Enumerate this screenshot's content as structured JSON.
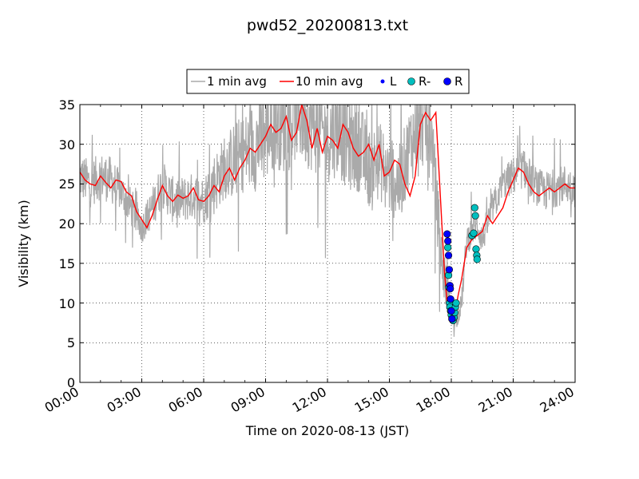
{
  "chart_data": {
    "type": "line",
    "title": "pwd52_20200813.txt",
    "xlabel": "Time on 2020-08-13 (JST)",
    "ylabel": "Visibility (km)",
    "xlim": [
      "00:00",
      "24:00"
    ],
    "ylim": [
      0,
      35
    ],
    "grid": true,
    "legend_position": "top-center",
    "x_tick_labels": [
      "00:00",
      "03:00",
      "06:00",
      "09:00",
      "12:00",
      "15:00",
      "18:00",
      "21:00",
      "24:00"
    ],
    "y_tick_labels": [
      "0",
      "5",
      "10",
      "15",
      "20",
      "25",
      "30",
      "35"
    ],
    "legend": [
      "1 min avg",
      "10 min avg",
      "L",
      "R-",
      "R"
    ],
    "colors": {
      "one_min": "#aaaaaa",
      "ten_min": "#ff0000",
      "L": "#0000ff",
      "R_minus": "#00bfbf",
      "R": "#0000ff"
    },
    "series": [
      {
        "name": "1 min avg",
        "style": "noisy-line",
        "x": [
          "00:00",
          "00:30",
          "01:00",
          "01:30",
          "02:00",
          "02:30",
          "03:00",
          "03:30",
          "04:00",
          "04:30",
          "05:00",
          "05:30",
          "06:00",
          "06:30",
          "07:00",
          "07:30",
          "08:00",
          "08:30",
          "09:00",
          "09:30",
          "10:00",
          "10:30",
          "11:00",
          "11:30",
          "12:00",
          "12:30",
          "13:00",
          "13:30",
          "14:00",
          "14:30",
          "15:00",
          "15:30",
          "16:00",
          "16:30",
          "17:00",
          "17:30",
          "17:45",
          "18:00",
          "18:15",
          "18:30",
          "18:45",
          "19:00",
          "19:15",
          "19:30",
          "20:00",
          "20:30",
          "21:00",
          "21:30",
          "22:00",
          "22:30",
          "23:00",
          "23:30",
          "24:00"
        ],
        "values": [
          26,
          25,
          26,
          25.5,
          24,
          22,
          19.5,
          22,
          25,
          23,
          23,
          23.5,
          23,
          25,
          27,
          28,
          29,
          30,
          31,
          33,
          32,
          34,
          33,
          32,
          31,
          32,
          30,
          30,
          27,
          28,
          26,
          25,
          30,
          33,
          32,
          16,
          12,
          8.5,
          7.8,
          10,
          18,
          19,
          20,
          18,
          22,
          25,
          26,
          27,
          25,
          24,
          24.5,
          25,
          24.5
        ],
        "noise": [
          3,
          3,
          3,
          3,
          2.5,
          2.5,
          2,
          2.5,
          3,
          3,
          3,
          3,
          3,
          4,
          4,
          5,
          5,
          6,
          6,
          6,
          6,
          6,
          6,
          6,
          6,
          6,
          6,
          6,
          5,
          5,
          5,
          5,
          5,
          6,
          5,
          4,
          3,
          1.5,
          1,
          1.5,
          2,
          2,
          2,
          2,
          2,
          2,
          2.5,
          2.5,
          2.5,
          2.5,
          2.5,
          2.5,
          2.5
        ]
      },
      {
        "name": "10 min avg",
        "style": "line",
        "x": [
          "00:00",
          "00:15",
          "00:30",
          "00:45",
          "01:00",
          "01:15",
          "01:30",
          "01:45",
          "02:00",
          "02:15",
          "02:30",
          "02:45",
          "03:00",
          "03:15",
          "03:30",
          "03:45",
          "04:00",
          "04:15",
          "04:30",
          "04:45",
          "05:00",
          "05:15",
          "05:30",
          "05:45",
          "06:00",
          "06:15",
          "06:30",
          "06:45",
          "07:00",
          "07:15",
          "07:30",
          "07:45",
          "08:00",
          "08:15",
          "08:30",
          "08:45",
          "09:00",
          "09:15",
          "09:30",
          "09:45",
          "10:00",
          "10:15",
          "10:30",
          "10:45",
          "11:00",
          "11:15",
          "11:30",
          "11:45",
          "12:00",
          "12:15",
          "12:30",
          "12:45",
          "13:00",
          "13:15",
          "13:30",
          "13:45",
          "14:00",
          "14:15",
          "14:30",
          "14:45",
          "15:00",
          "15:15",
          "15:30",
          "15:45",
          "16:00",
          "16:15",
          "16:30",
          "16:45",
          "17:00",
          "17:15",
          "17:30",
          "17:40",
          "17:50",
          "18:00",
          "18:10",
          "18:20",
          "18:30",
          "18:45",
          "19:00",
          "19:15",
          "19:30",
          "19:45",
          "20:00",
          "20:15",
          "20:30",
          "20:45",
          "21:00",
          "21:15",
          "21:30",
          "21:45",
          "22:00",
          "22:15",
          "22:30",
          "22:45",
          "23:00",
          "23:15",
          "23:30",
          "23:45",
          "24:00"
        ],
        "values": [
          26.5,
          25.5,
          25,
          24.8,
          26,
          25.2,
          24.5,
          25.5,
          25.3,
          24,
          23.5,
          21.5,
          20.5,
          19.5,
          21,
          23,
          24.8,
          23.5,
          22.8,
          23.6,
          23.2,
          23.5,
          24.5,
          23,
          22.8,
          23.5,
          24.8,
          24,
          26,
          27,
          25.5,
          27,
          28,
          29.5,
          29,
          30,
          31,
          32.5,
          31.5,
          32,
          33.5,
          30.5,
          31.5,
          35,
          33,
          29.5,
          32,
          29,
          31,
          30.5,
          29.5,
          32.5,
          31.5,
          29.5,
          28.5,
          29,
          30,
          28,
          30,
          26,
          26.5,
          28,
          27.5,
          25,
          23.5,
          26,
          32.5,
          34,
          33,
          34,
          22,
          14,
          9,
          8,
          8.5,
          11,
          13,
          17,
          18,
          18.5,
          19,
          21,
          20,
          21,
          22,
          24,
          25.5,
          27,
          26.5,
          25,
          24,
          23.5,
          24,
          24.5,
          24,
          24.5,
          25,
          24.5,
          24.5
        ]
      },
      {
        "name": "L",
        "style": "points",
        "x": [],
        "values": []
      },
      {
        "name": "R-",
        "style": "markers",
        "x": [
          "17:50",
          "17:52",
          "17:53",
          "17:55",
          "17:56",
          "17:58",
          "18:00",
          "18:02",
          "18:05",
          "18:08",
          "18:10",
          "18:12",
          "18:14",
          "19:00",
          "19:05",
          "19:08",
          "19:10",
          "19:12",
          "19:14",
          "19:15"
        ],
        "values": [
          17,
          13.5,
          12,
          10,
          9.5,
          9,
          8.5,
          8,
          7.8,
          8.2,
          8.8,
          9.5,
          10,
          18.5,
          18.8,
          22,
          21,
          16.8,
          16,
          15.5
        ]
      },
      {
        "name": "R",
        "style": "markers",
        "x": [
          "17:48",
          "17:50",
          "17:52",
          "17:54",
          "17:56",
          "17:57",
          "17:58",
          "18:00",
          "18:02"
        ],
        "values": [
          18.7,
          17.8,
          16,
          14.2,
          12.2,
          11.8,
          10.5,
          9,
          8
        ]
      }
    ]
  }
}
